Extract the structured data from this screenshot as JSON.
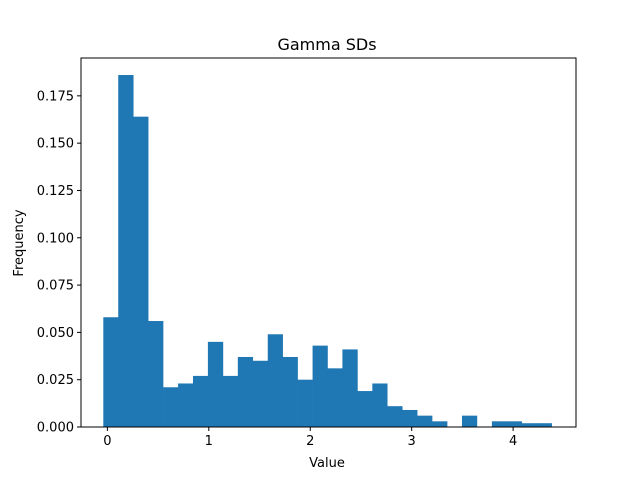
{
  "chart_data": {
    "type": "bar",
    "title": "Gamma SDs",
    "xlabel": "Value",
    "ylabel": "Frequency",
    "xlim": [
      -0.26,
      4.62
    ],
    "ylim": [
      0,
      0.195
    ],
    "xticks": [
      0,
      1,
      2,
      3,
      4
    ],
    "xtick_labels": [
      "0",
      "1",
      "2",
      "3",
      "4"
    ],
    "yticks": [
      0,
      0.025,
      0.05,
      0.075,
      0.1,
      0.125,
      0.15,
      0.175
    ],
    "ytick_labels": [
      "0.000",
      "0.025",
      "0.050",
      "0.075",
      "0.100",
      "0.125",
      "0.150",
      "0.175"
    ],
    "grid": false,
    "bar_color": "#1f77b4",
    "bins": [
      {
        "x0": -0.04,
        "x1": 0.107,
        "value": 0.058
      },
      {
        "x0": 0.107,
        "x1": 0.255,
        "value": 0.186
      },
      {
        "x0": 0.255,
        "x1": 0.402,
        "value": 0.164
      },
      {
        "x0": 0.402,
        "x1": 0.549,
        "value": 0.056
      },
      {
        "x0": 0.549,
        "x1": 0.697,
        "value": 0.021
      },
      {
        "x0": 0.697,
        "x1": 0.844,
        "value": 0.023
      },
      {
        "x0": 0.844,
        "x1": 0.991,
        "value": 0.027
      },
      {
        "x0": 0.991,
        "x1": 1.139,
        "value": 0.045
      },
      {
        "x0": 1.139,
        "x1": 1.286,
        "value": 0.027
      },
      {
        "x0": 1.286,
        "x1": 1.433,
        "value": 0.037
      },
      {
        "x0": 1.433,
        "x1": 1.581,
        "value": 0.035
      },
      {
        "x0": 1.581,
        "x1": 1.728,
        "value": 0.049
      },
      {
        "x0": 1.728,
        "x1": 1.875,
        "value": 0.037
      },
      {
        "x0": 1.875,
        "x1": 2.023,
        "value": 0.025
      },
      {
        "x0": 2.023,
        "x1": 2.17,
        "value": 0.043
      },
      {
        "x0": 2.17,
        "x1": 2.317,
        "value": 0.031
      },
      {
        "x0": 2.317,
        "x1": 2.465,
        "value": 0.041
      },
      {
        "x0": 2.465,
        "x1": 2.612,
        "value": 0.019
      },
      {
        "x0": 2.612,
        "x1": 2.759,
        "value": 0.023
      },
      {
        "x0": 2.759,
        "x1": 2.907,
        "value": 0.011
      },
      {
        "x0": 2.907,
        "x1": 3.054,
        "value": 0.009
      },
      {
        "x0": 3.054,
        "x1": 3.201,
        "value": 0.006
      },
      {
        "x0": 3.201,
        "x1": 3.349,
        "value": 0.003
      },
      {
        "x0": 3.349,
        "x1": 3.496,
        "value": 0.0
      },
      {
        "x0": 3.496,
        "x1": 3.643,
        "value": 0.006
      },
      {
        "x0": 3.643,
        "x1": 3.791,
        "value": 0.0
      },
      {
        "x0": 3.791,
        "x1": 3.938,
        "value": 0.003
      },
      {
        "x0": 3.938,
        "x1": 4.085,
        "value": 0.003
      },
      {
        "x0": 4.085,
        "x1": 4.233,
        "value": 0.002
      },
      {
        "x0": 4.233,
        "x1": 4.38,
        "value": 0.002
      }
    ]
  }
}
